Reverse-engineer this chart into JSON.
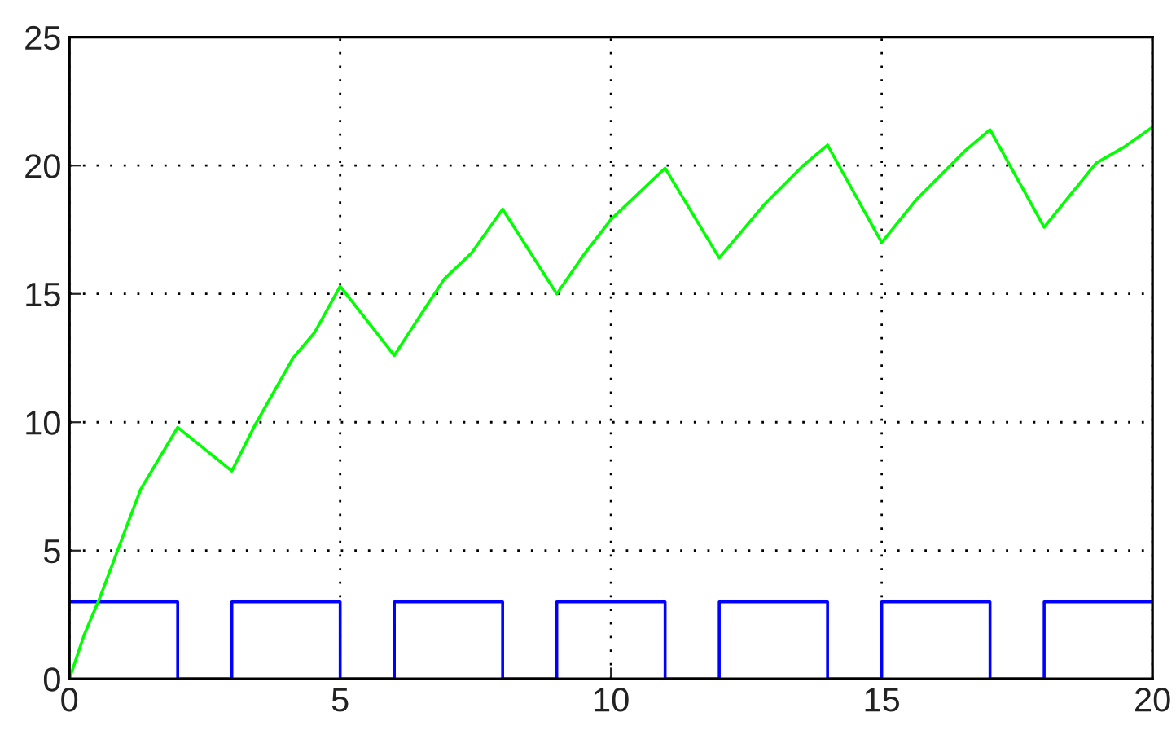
{
  "chart_data": {
    "type": "line",
    "xlim": [
      0,
      20
    ],
    "ylim": [
      0,
      25
    ],
    "xticks": [
      0,
      5,
      10,
      15,
      20
    ],
    "yticks": [
      0,
      5,
      10,
      15,
      20,
      25
    ],
    "grid": true,
    "line_style": "solid",
    "marker": "none",
    "series": [
      {
        "type": "step",
        "color": "#0000ff",
        "x": [
          0,
          2,
          3,
          5,
          6,
          8,
          9,
          11,
          12,
          14,
          15,
          17,
          18,
          20
        ],
        "values": [
          3,
          0,
          3,
          0,
          3,
          0,
          3,
          0,
          3,
          0,
          3,
          0,
          3,
          3
        ]
      },
      {
        "color": "#00ff00",
        "x": [
          0,
          0.27,
          0.57,
          1.12,
          1.32,
          2.0,
          3.0,
          3.43,
          4.13,
          4.53,
          5.0,
          6.0,
          6.43,
          6.93,
          7.43,
          8.0,
          9.0,
          9.49,
          10.0,
          11.0,
          12.0,
          12.84,
          13.55,
          14.0,
          15.0,
          15.65,
          16.55,
          17.0,
          18.0,
          18.96,
          19.46,
          20.0
        ],
        "values": [
          0,
          1.7,
          3.2,
          6.3,
          7.4,
          9.8,
          8.1,
          9.9,
          12.5,
          13.5,
          15.3,
          12.6,
          14.0,
          15.6,
          16.6,
          18.3,
          15.0,
          16.5,
          17.9,
          19.9,
          16.4,
          18.5,
          20.0,
          20.8,
          17.0,
          18.7,
          20.6,
          21.4,
          17.6,
          20.1,
          20.7,
          21.5
        ]
      }
    ]
  }
}
